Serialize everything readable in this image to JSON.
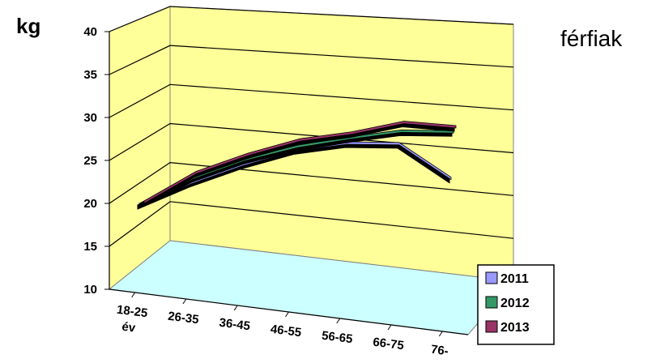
{
  "chart_data": {
    "type": "line",
    "style": "3d-line",
    "title": "férfiak",
    "ylabel": "kg",
    "ylim": [
      10,
      40
    ],
    "yticks": [
      10,
      15,
      20,
      25,
      30,
      35,
      40
    ],
    "categories": [
      "18-25 év",
      "26-35",
      "36-45",
      "46-55",
      "56-65",
      "66-75",
      "76-"
    ],
    "category_tick_text": [
      {
        "main": "18-25",
        "sub": "év"
      },
      {
        "main": "26-35",
        "sub": ""
      },
      {
        "main": "36-45",
        "sub": ""
      },
      {
        "main": "46-55",
        "sub": ""
      },
      {
        "main": "56-65",
        "sub": ""
      },
      {
        "main": "66-75",
        "sub": ""
      },
      {
        "main": "76-",
        "sub": ""
      }
    ],
    "series": [
      {
        "name": "2011",
        "values": [
          19.0,
          22.0,
          24.5,
          26.5,
          27.5,
          27.5,
          23.0
        ],
        "color": "#9999ff"
      },
      {
        "name": "2012",
        "values": [
          19.0,
          22.5,
          25.0,
          26.8,
          28.0,
          29.0,
          29.0
        ],
        "color": "#339966"
      },
      {
        "name": "2013",
        "values": [
          19.0,
          23.0,
          25.5,
          27.5,
          28.5,
          30.0,
          29.5
        ],
        "color": "#993366"
      }
    ],
    "grid": true,
    "legend_position": "bottom-right",
    "colors": {
      "back_wall": "#ffff99",
      "side_wall": "#ffff99",
      "floor": "#ccffff",
      "grid": "#000000"
    }
  }
}
